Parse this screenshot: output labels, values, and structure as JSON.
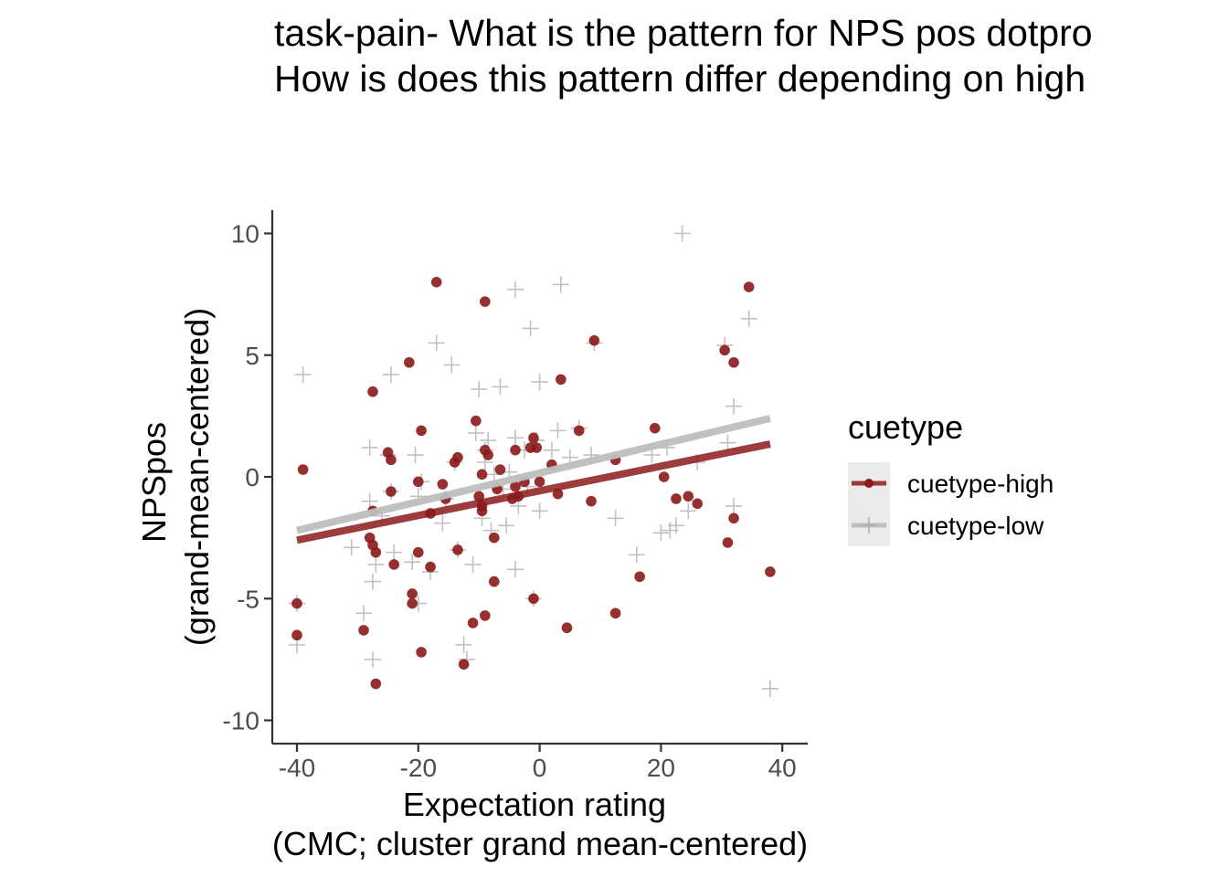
{
  "chart_data": {
    "type": "scatter",
    "title_lines": [
      "task-pain- What is the pattern for NPS pos dotpro",
      "How is does this pattern differ depending on high"
    ],
    "xlabel_lines": [
      "Expectation rating",
      "(CMC; cluster grand mean-centered)"
    ],
    "ylabel_lines": [
      "NPSpos",
      "(grand-mean-centered)"
    ],
    "xlim": [
      -41,
      44
    ],
    "ylim": [
      -11,
      11
    ],
    "xticks": [
      -40,
      -20,
      0,
      20,
      40
    ],
    "yticks": [
      -10,
      -5,
      0,
      5,
      10
    ],
    "xtick_labels": [
      "-40",
      "-20",
      "0",
      "20",
      "40"
    ],
    "ytick_labels": [
      "-10",
      "-5",
      "0",
      "5",
      "10"
    ],
    "grid": false,
    "legend": {
      "title": "cuetype",
      "placement": "right",
      "entries": [
        "cuetype-high",
        "cuetype-low"
      ]
    },
    "series": [
      {
        "name": "cuetype-high",
        "color": "#8b1a1a",
        "marker": "circle",
        "fit": {
          "x": [
            -40,
            38
          ],
          "y": [
            -2.6,
            1.35
          ]
        },
        "points": [
          [
            -40,
            -5.2
          ],
          [
            -40,
            -6.5
          ],
          [
            -39,
            0.3
          ],
          [
            -29,
            -6.3
          ],
          [
            -28,
            -2.5
          ],
          [
            -27.5,
            -1.4
          ],
          [
            -27.5,
            3.5
          ],
          [
            -27.5,
            -2.8
          ],
          [
            -27,
            -3.1
          ],
          [
            -27,
            -8.5
          ],
          [
            -25,
            1.0
          ],
          [
            -24.5,
            0.7
          ],
          [
            -24.5,
            -0.6
          ],
          [
            -24,
            -3.6
          ],
          [
            -21.5,
            4.7
          ],
          [
            -21,
            -4.8
          ],
          [
            -21,
            -5.2
          ],
          [
            -20,
            -3.1
          ],
          [
            -20,
            -0.2
          ],
          [
            -19.5,
            1.9
          ],
          [
            -19.5,
            -7.2
          ],
          [
            -18,
            -3.7
          ],
          [
            -18,
            -1.5
          ],
          [
            -17,
            8.0
          ],
          [
            -16,
            -0.3
          ],
          [
            -15.5,
            -0.9
          ],
          [
            -14,
            0.6
          ],
          [
            -13.5,
            0.8
          ],
          [
            -13.5,
            -3.0
          ],
          [
            -12.5,
            -7.7
          ],
          [
            -11,
            -6.0
          ],
          [
            -10.5,
            2.3
          ],
          [
            -10,
            -0.8
          ],
          [
            -9.5,
            0.1
          ],
          [
            -9.5,
            -1.2
          ],
          [
            -9.5,
            -1.4
          ],
          [
            -9,
            1.1
          ],
          [
            -9,
            7.2
          ],
          [
            -9,
            -5.7
          ],
          [
            -8.5,
            0.9
          ],
          [
            -7.5,
            -4.3
          ],
          [
            -7.5,
            -2.5
          ],
          [
            -7,
            -0.5
          ],
          [
            -6.5,
            0.3
          ],
          [
            -4.5,
            -0.9
          ],
          [
            -4,
            -0.4
          ],
          [
            -4,
            1.1
          ],
          [
            -3.5,
            -0.8
          ],
          [
            -2.5,
            -0.2
          ],
          [
            -1.5,
            1.2
          ],
          [
            -1,
            -5.0
          ],
          [
            -1,
            1.6
          ],
          [
            -0.5,
            1.2
          ],
          [
            0,
            -0.2
          ],
          [
            2,
            0.5
          ],
          [
            3,
            -0.7
          ],
          [
            3.5,
            4.0
          ],
          [
            4.5,
            -6.2
          ],
          [
            6.5,
            1.9
          ],
          [
            8.5,
            -1.0
          ],
          [
            9,
            5.6
          ],
          [
            12.5,
            -5.6
          ],
          [
            12.5,
            0.7
          ],
          [
            16.5,
            -4.1
          ],
          [
            19,
            2.0
          ],
          [
            20.5,
            0.0
          ],
          [
            22.5,
            -0.9
          ],
          [
            24.5,
            -0.8
          ],
          [
            26,
            -1.1
          ],
          [
            30.5,
            5.2
          ],
          [
            31,
            -2.7
          ],
          [
            32,
            4.7
          ],
          [
            32,
            -1.7
          ],
          [
            34.5,
            7.8
          ],
          [
            38,
            -3.9
          ]
        ]
      },
      {
        "name": "cuetype-low",
        "color": "#bebebe",
        "marker": "cross",
        "fit": {
          "x": [
            -40,
            38
          ],
          "y": [
            -2.2,
            2.4
          ]
        },
        "points": [
          [
            -40,
            -6.9
          ],
          [
            -40,
            -5.2
          ],
          [
            -39,
            4.2
          ],
          [
            -31,
            -2.9
          ],
          [
            -29,
            -5.6
          ],
          [
            -28,
            1.2
          ],
          [
            -28,
            -1.0
          ],
          [
            -27.5,
            -4.3
          ],
          [
            -27.5,
            -7.5
          ],
          [
            -27,
            -3.6
          ],
          [
            -26,
            -1.6
          ],
          [
            -25,
            0.9
          ],
          [
            -24.5,
            4.2
          ],
          [
            -24.5,
            -0.6
          ],
          [
            -24,
            -3.1
          ],
          [
            -21,
            -3.5
          ],
          [
            -20.5,
            0.9
          ],
          [
            -20,
            -0.8
          ],
          [
            -20,
            -5.2
          ],
          [
            -19.5,
            -0.2
          ],
          [
            -18,
            -3.9
          ],
          [
            -17,
            5.5
          ],
          [
            -16,
            -1.9
          ],
          [
            -15.5,
            -0.9
          ],
          [
            -14.5,
            4.6
          ],
          [
            -14,
            0.6
          ],
          [
            -13.5,
            -3.0
          ],
          [
            -12.5,
            -6.9
          ],
          [
            -12,
            -7.5
          ],
          [
            -11,
            -3.6
          ],
          [
            -10.5,
            1.8
          ],
          [
            -10,
            3.6
          ],
          [
            -9.5,
            -1.7
          ],
          [
            -9,
            1.1
          ],
          [
            -9,
            0.6
          ],
          [
            -8.5,
            1.5
          ],
          [
            -8,
            -2.2
          ],
          [
            -7.5,
            0.1
          ],
          [
            -6.5,
            3.7
          ],
          [
            -6,
            -0.5
          ],
          [
            -5.5,
            -2.0
          ],
          [
            -5,
            0.2
          ],
          [
            -4,
            -3.8
          ],
          [
            -4,
            1.6
          ],
          [
            -4,
            7.7
          ],
          [
            -3.5,
            -1.2
          ],
          [
            -2.5,
            1.1
          ],
          [
            -2,
            -0.4
          ],
          [
            -1.5,
            6.1
          ],
          [
            -1,
            -5.0
          ],
          [
            -0.5,
            1.5
          ],
          [
            0,
            3.9
          ],
          [
            0,
            -1.4
          ],
          [
            2,
            1.1
          ],
          [
            3,
            1.9
          ],
          [
            3.5,
            7.9
          ],
          [
            5,
            0.8
          ],
          [
            6.5,
            2.0
          ],
          [
            8.5,
            0.9
          ],
          [
            9,
            5.5
          ],
          [
            12.5,
            -1.7
          ],
          [
            16,
            -3.2
          ],
          [
            18.5,
            0.9
          ],
          [
            20,
            -2.3
          ],
          [
            21,
            1.2
          ],
          [
            21.5,
            -2.2
          ],
          [
            22.5,
            -2.0
          ],
          [
            23.5,
            10.0
          ],
          [
            24.5,
            -1.4
          ],
          [
            26,
            0.6
          ],
          [
            30.5,
            5.4
          ],
          [
            31,
            1.4
          ],
          [
            32,
            2.9
          ],
          [
            32,
            -1.2
          ],
          [
            34.5,
            6.5
          ],
          [
            38,
            -8.7
          ]
        ]
      }
    ]
  }
}
